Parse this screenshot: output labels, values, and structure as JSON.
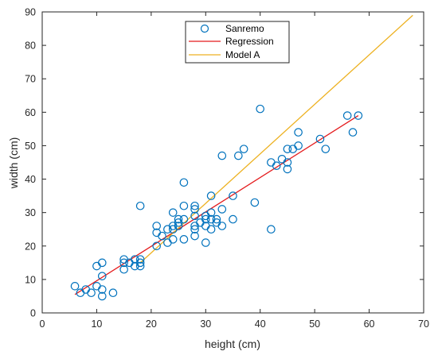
{
  "chart_data": {
    "type": "scatter",
    "title": "",
    "xlabel": "height (cm)",
    "ylabel": "width (cm)",
    "xlim": [
      0,
      70
    ],
    "ylim": [
      0,
      90
    ],
    "xticks": [
      0,
      10,
      20,
      30,
      40,
      50,
      60,
      70
    ],
    "yticks": [
      0,
      10,
      20,
      30,
      40,
      50,
      60,
      70,
      80,
      90
    ],
    "grid": false,
    "legend_position": "top-center",
    "series": [
      {
        "name": "Sanremo",
        "kind": "scatter",
        "marker": "open-circle",
        "color": "#0072BD",
        "points": [
          [
            6,
            8
          ],
          [
            7,
            6
          ],
          [
            8,
            7
          ],
          [
            9,
            6
          ],
          [
            10,
            8
          ],
          [
            10,
            14
          ],
          [
            11,
            15
          ],
          [
            11,
            11
          ],
          [
            11,
            7
          ],
          [
            11,
            5
          ],
          [
            13,
            6
          ],
          [
            15,
            16
          ],
          [
            15,
            15
          ],
          [
            15,
            13
          ],
          [
            16,
            15
          ],
          [
            17,
            16
          ],
          [
            17,
            14
          ],
          [
            18,
            16
          ],
          [
            18,
            15
          ],
          [
            18,
            14
          ],
          [
            18,
            32
          ],
          [
            21,
            26
          ],
          [
            21,
            24
          ],
          [
            21,
            20
          ],
          [
            22,
            23
          ],
          [
            23,
            25
          ],
          [
            23,
            21
          ],
          [
            24,
            30
          ],
          [
            24,
            26
          ],
          [
            24,
            25
          ],
          [
            24,
            22
          ],
          [
            25,
            28
          ],
          [
            25,
            27
          ],
          [
            25,
            26
          ],
          [
            26,
            39
          ],
          [
            26,
            32
          ],
          [
            26,
            28
          ],
          [
            26,
            22
          ],
          [
            28,
            32
          ],
          [
            28,
            31
          ],
          [
            28,
            29
          ],
          [
            28,
            26
          ],
          [
            28,
            25
          ],
          [
            28,
            23
          ],
          [
            29,
            27
          ],
          [
            30,
            29
          ],
          [
            30,
            28
          ],
          [
            30,
            26
          ],
          [
            30,
            21
          ],
          [
            31,
            35
          ],
          [
            31,
            30
          ],
          [
            31,
            28
          ],
          [
            31,
            25
          ],
          [
            32,
            28
          ],
          [
            32,
            27
          ],
          [
            33,
            47
          ],
          [
            33,
            31
          ],
          [
            33,
            26
          ],
          [
            35,
            35
          ],
          [
            35,
            28
          ],
          [
            36,
            47
          ],
          [
            37,
            49
          ],
          [
            39,
            33
          ],
          [
            40,
            61
          ],
          [
            42,
            45
          ],
          [
            42,
            25
          ],
          [
            43,
            44
          ],
          [
            44,
            46
          ],
          [
            45,
            49
          ],
          [
            45,
            45
          ],
          [
            45,
            43
          ],
          [
            46,
            49
          ],
          [
            47,
            54
          ],
          [
            47,
            50
          ],
          [
            51,
            52
          ],
          [
            52,
            49
          ],
          [
            56,
            59
          ],
          [
            57,
            54
          ],
          [
            58,
            59
          ]
        ]
      },
      {
        "name": "Regression",
        "kind": "line",
        "color": "#E41A1C",
        "x": [
          6,
          58
        ],
        "y": [
          5.5,
          59
        ]
      },
      {
        "name": "Model A",
        "kind": "line",
        "color": "#EDB120",
        "x": [
          18,
          68
        ],
        "y": [
          15,
          89
        ]
      }
    ]
  }
}
